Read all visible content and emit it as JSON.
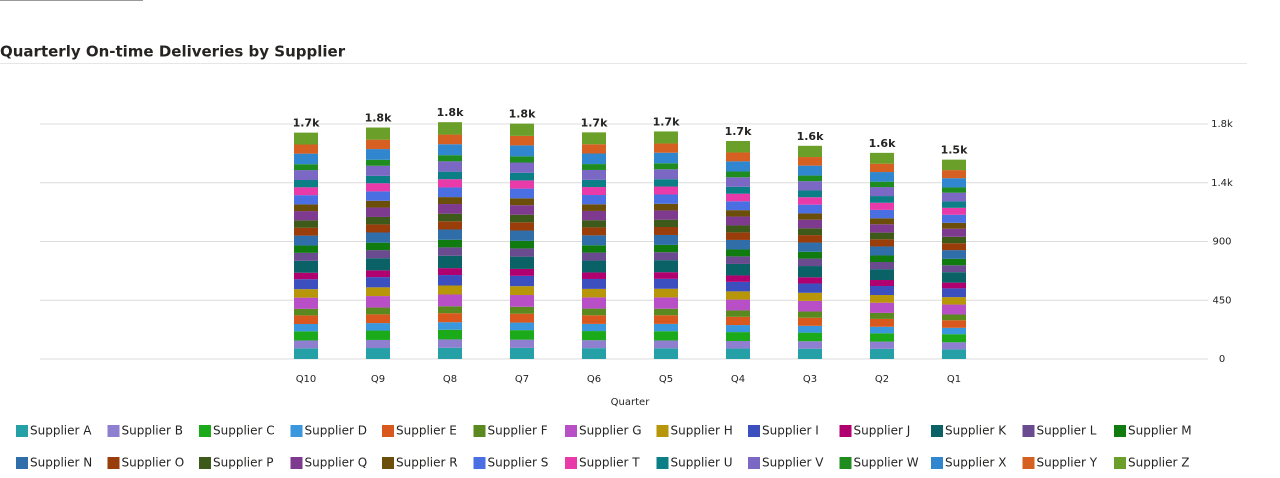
{
  "chart_data": {
    "type": "stacked_bar",
    "title": "Quarterly On-time Deliveries by Supplier",
    "x_label": "Quarter",
    "categories": [
      "Q10",
      "Q9",
      "Q8",
      "Q7",
      "Q6",
      "Q5",
      "Q4",
      "Q3",
      "Q2",
      "Q1"
    ],
    "total_labels": [
      "1.7k",
      "1.8k",
      "1.8k",
      "1.8k",
      "1.7k",
      "1.7k",
      "1.7k",
      "1.6k",
      "1.6k",
      "1.5k"
    ],
    "ylim": [
      0,
      1800
    ],
    "yticks": [
      0,
      450,
      900,
      {
        "value": 1350,
        "label": "1.4k"
      },
      {
        "value": 1800,
        "label": "1.8k"
      }
    ],
    "grid": true,
    "legend": "bottom",
    "series": [
      {
        "name": "Supplier A",
        "color": "#26a0a7",
        "values": [
          82,
          84,
          86,
          85,
          83,
          82,
          80,
          79,
          78,
          74
        ]
      },
      {
        "name": "Supplier B",
        "color": "#8f7fd0",
        "values": [
          60,
          62,
          64,
          63,
          61,
          60,
          58,
          57,
          55,
          54
        ]
      },
      {
        "name": "Supplier C",
        "color": "#1aaa1a",
        "values": [
          70,
          72,
          74,
          73,
          70,
          71,
          68,
          66,
          64,
          62
        ]
      },
      {
        "name": "Supplier D",
        "color": "#3a96dd",
        "values": [
          56,
          57,
          58,
          58,
          55,
          56,
          54,
          52,
          50,
          49
        ]
      },
      {
        "name": "Supplier E",
        "color": "#d9581d",
        "values": [
          66,
          67,
          69,
          68,
          66,
          66,
          63,
          62,
          60,
          58
        ]
      },
      {
        "name": "Supplier F",
        "color": "#5a8a1f",
        "values": [
          50,
          52,
          53,
          53,
          51,
          50,
          49,
          48,
          46,
          44
        ]
      },
      {
        "name": "Supplier G",
        "color": "#b94fc7",
        "values": [
          86,
          88,
          90,
          90,
          86,
          87,
          83,
          81,
          78,
          76
        ]
      },
      {
        "name": "Supplier H",
        "color": "#b8960a",
        "values": [
          65,
          67,
          69,
          68,
          65,
          66,
          63,
          62,
          59,
          57
        ]
      },
      {
        "name": "Supplier I",
        "color": "#3b4fbf",
        "values": [
          76,
          78,
          80,
          79,
          76,
          76,
          73,
          71,
          69,
          67
        ]
      },
      {
        "name": "Supplier J",
        "color": "#b0006f",
        "values": [
          50,
          52,
          53,
          53,
          50,
          51,
          49,
          48,
          46,
          44
        ]
      },
      {
        "name": "Supplier K",
        "color": "#0a6266",
        "values": [
          91,
          93,
          95,
          94,
          91,
          92,
          88,
          86,
          83,
          80
        ]
      },
      {
        "name": "Supplier L",
        "color": "#6b4b8f",
        "values": [
          61,
          62,
          64,
          63,
          61,
          61,
          58,
          57,
          55,
          53
        ]
      },
      {
        "name": "Supplier M",
        "color": "#107c10",
        "values": [
          56,
          57,
          58,
          58,
          56,
          56,
          53,
          52,
          50,
          49
        ]
      },
      {
        "name": "Supplier N",
        "color": "#2f6ea8",
        "values": [
          76,
          78,
          79,
          79,
          76,
          76,
          73,
          71,
          69,
          67
        ]
      },
      {
        "name": "Supplier O",
        "color": "#993d0b",
        "values": [
          61,
          62,
          63,
          63,
          61,
          61,
          58,
          57,
          55,
          53
        ]
      },
      {
        "name": "Supplier P",
        "color": "#3d5a1a",
        "values": [
          56,
          57,
          58,
          58,
          55,
          56,
          53,
          52,
          51,
          49
        ]
      },
      {
        "name": "Supplier Q",
        "color": "#7e3a8f",
        "values": [
          71,
          72,
          74,
          73,
          71,
          71,
          68,
          66,
          64,
          62
        ]
      },
      {
        "name": "Supplier R",
        "color": "#6b4e0a",
        "values": [
          51,
          52,
          53,
          53,
          51,
          51,
          49,
          48,
          46,
          45
        ]
      },
      {
        "name": "Supplier S",
        "color": "#4a6fe3",
        "values": [
          71,
          72,
          74,
          74,
          71,
          71,
          68,
          67,
          64,
          62
        ]
      },
      {
        "name": "Supplier T",
        "color": "#e83aa8",
        "values": [
          60,
          62,
          63,
          63,
          61,
          61,
          58,
          57,
          55,
          53
        ]
      },
      {
        "name": "Supplier U",
        "color": "#0b7f85",
        "values": [
          56,
          57,
          58,
          58,
          55,
          56,
          53,
          52,
          51,
          49
        ]
      },
      {
        "name": "Supplier V",
        "color": "#7a68c4",
        "values": [
          76,
          77,
          79,
          79,
          76,
          76,
          73,
          71,
          69,
          67
        ]
      },
      {
        "name": "Supplier W",
        "color": "#1e8c1e",
        "values": [
          45,
          46,
          47,
          47,
          45,
          46,
          44,
          43,
          41,
          40
        ]
      },
      {
        "name": "Supplier X",
        "color": "#3187cf",
        "values": [
          81,
          82,
          84,
          84,
          81,
          81,
          78,
          76,
          74,
          71
        ]
      },
      {
        "name": "Supplier Y",
        "color": "#d66022",
        "values": [
          70,
          72,
          74,
          73,
          71,
          71,
          68,
          66,
          64,
          62
        ]
      },
      {
        "name": "Supplier Z",
        "color": "#6a9f2a",
        "values": [
          91,
          93,
          95,
          94,
          91,
          92,
          88,
          86,
          83,
          80
        ]
      }
    ]
  }
}
